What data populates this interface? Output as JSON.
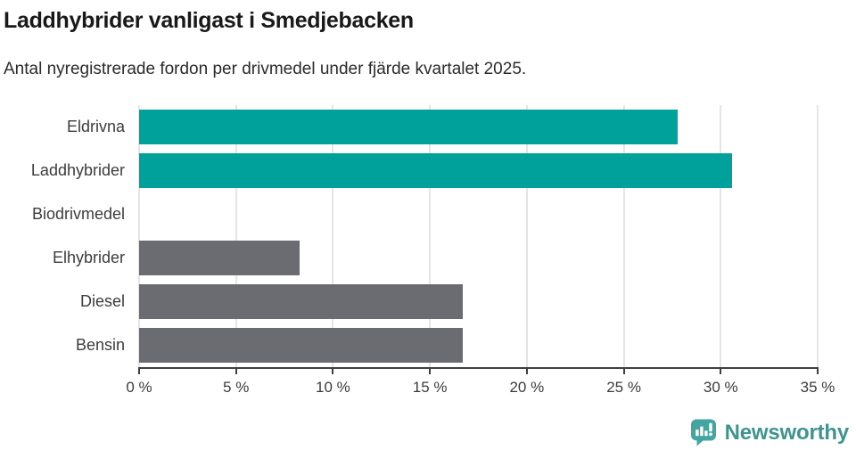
{
  "chart_data": {
    "type": "bar",
    "orientation": "horizontal",
    "title": "Laddhybrider vanligast i Smedjebacken",
    "subtitle": "Antal nyregistrerade fordon per drivmedel under fjärde kvartalet 2025.",
    "categories": [
      "Eldrivna",
      "Laddhybrider",
      "Biodrivmedel",
      "Elhybrider",
      "Diesel",
      "Bensin"
    ],
    "values": [
      27.8,
      30.6,
      0,
      8.3,
      16.7,
      16.7
    ],
    "unit": "%",
    "xlim": [
      0,
      35
    ],
    "x_ticks": [
      0,
      5,
      10,
      15,
      20,
      25,
      30,
      35
    ],
    "x_tick_labels": [
      "0 %",
      "5 %",
      "10 %",
      "15 %",
      "20 %",
      "25 %",
      "30 %",
      "35 %"
    ],
    "bar_colors": [
      "#00a09b",
      "#00a09b",
      "#6b6b72",
      "#6b6b72",
      "#6b6b72",
      "#6b6b72"
    ],
    "highlight_color": "#00a09b",
    "default_color": "#6b6b72",
    "grid": true,
    "gridline_color": "#e5e5e5",
    "axis_color": "#3f3f3f",
    "legend": "none"
  },
  "footer": {
    "brand": "Newsworthy",
    "brand_color": "#3f948e",
    "logo_icon": "newsworthy-speech-bubble-bar-chart-icon",
    "logo_color": "#43a5a0"
  }
}
